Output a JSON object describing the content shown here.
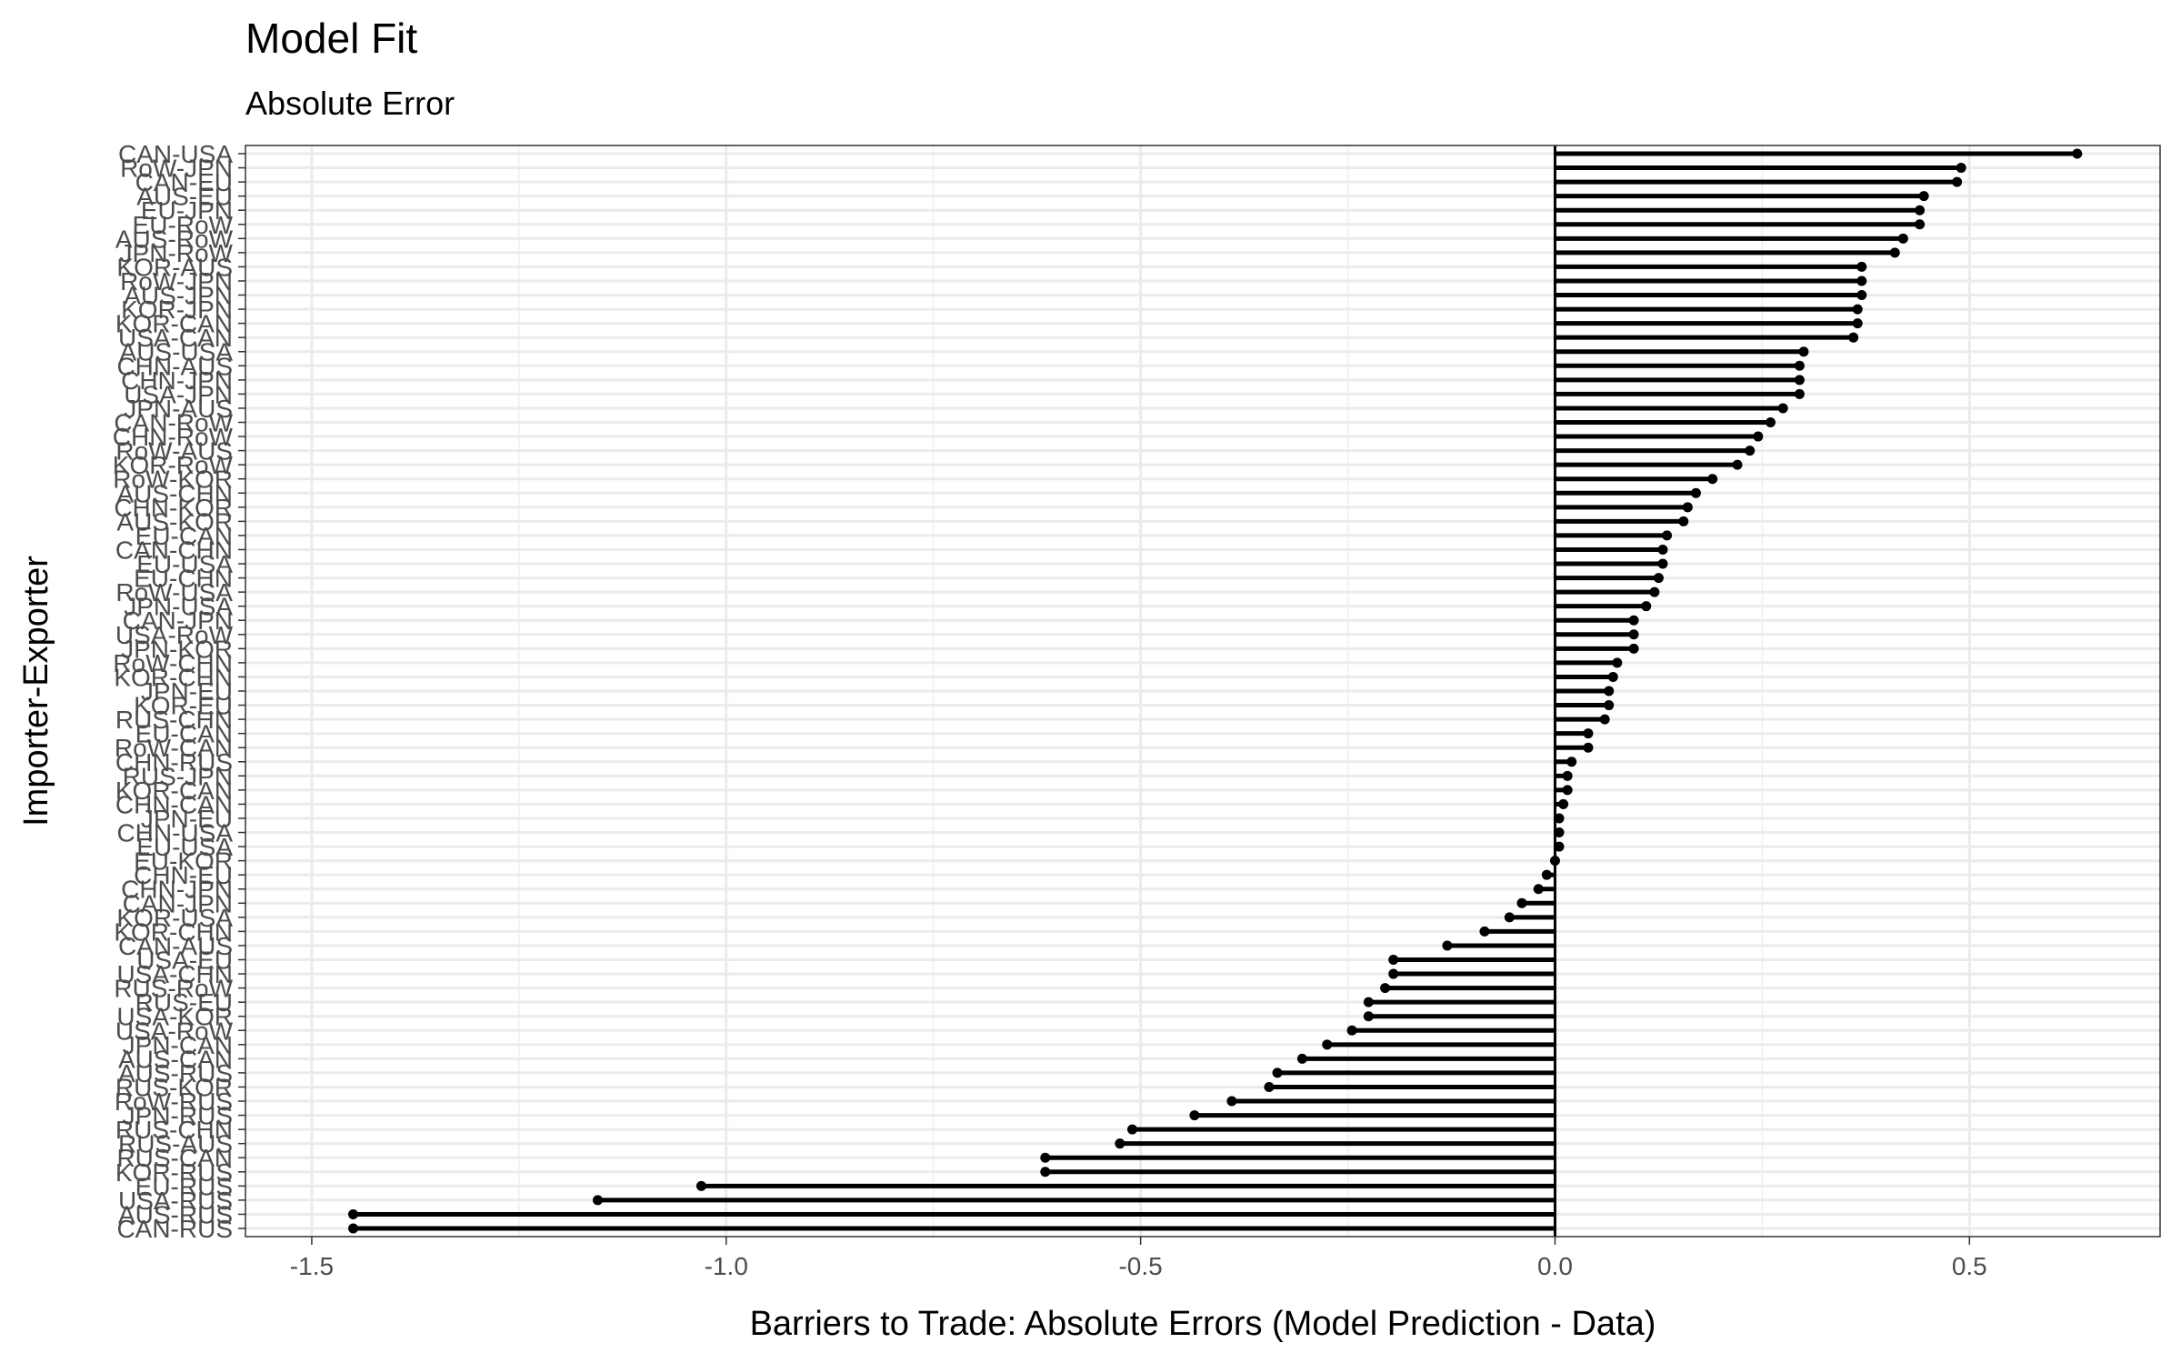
{
  "chart_data": {
    "type": "lollipop",
    "title": "Model Fit",
    "subtitle": "Absolute Error",
    "xlabel": "Barriers to Trade: Absolute Errors (Model Prediction - Data)",
    "ylabel": "Importer-Exporter",
    "xlim": [
      -1.58,
      0.73
    ],
    "xticks": [
      -1.5,
      -1.0,
      -0.5,
      0.0,
      0.5
    ],
    "xtick_labels": [
      "-1.5",
      "-1.0",
      "-0.5",
      "0.0",
      "0.5"
    ],
    "grid": true,
    "theme": "bw",
    "categories": [
      "CAN-USA",
      "RoW-JPN",
      "CAN-EU",
      "AUS-EU",
      "EU-JPN",
      "EU-RoW",
      "AUS-RoW",
      "JPN-RoW",
      "KOR-AUS",
      "RoW-JPN",
      "AUS-JPN",
      "KOR-JPN",
      "KOR-CAN",
      "USA-CAN",
      "AUS-USA",
      "CHN-AUS",
      "CHN-JPN",
      "USA-JPN",
      "JPN-AUS",
      "CAN-RoW",
      "CHN-RoW",
      "RoW-AUS",
      "KOR-RoW",
      "RoW-KOR",
      "AUS-CHN",
      "CHN-KOR",
      "AUS-KOR",
      "EU-CAN",
      "CAN-CHN",
      "EU-USA",
      "EU-CHN",
      "RoW-USA",
      "JPN-USA",
      "CAN-JPN",
      "USA-RoW",
      "JPN-KOR",
      "RoW-CHN",
      "KOR-CHN",
      "JPN-EU",
      "KOR-EU",
      "RUS-CHN",
      "EU-CAN",
      "RoW-CAN",
      "CHN-RUS",
      "RUS-JPN",
      "KOR-CAN",
      "CHN-CAN",
      "JPN-EU",
      "CHN-USA",
      "EU-USA",
      "EU-KOR",
      "CHN-EU",
      "CHN-JPN",
      "CAN-JPN",
      "KOR-USA",
      "KOR-CHN",
      "CAN-AUS",
      "USA-EU",
      "USA-CHN",
      "RUS-RoW",
      "RUS-EU",
      "USA-KOR",
      "USA-RoW",
      "JPN-CAN",
      "AUS-CAN",
      "AUS-RUS",
      "RUS-KOR",
      "RoW-RUS",
      "JPN-RUS",
      "RUS-CHN",
      "RUS-AUS",
      "RUS-CAN",
      "KOR-RUS",
      "EU-RUS",
      "USA-RUS",
      "AUS-RUS",
      "CAN-RUS"
    ],
    "series": [
      {
        "values": [
          0.63,
          0.49,
          0.485,
          0.445,
          0.44,
          0.44,
          0.42,
          0.41,
          0.37,
          0.37,
          0.37,
          0.365,
          0.365,
          0.36,
          0.3,
          0.295,
          0.295,
          0.295,
          0.275,
          0.26,
          0.245,
          0.235,
          0.22,
          0.19,
          0.17,
          0.16,
          0.155,
          0.135,
          0.13,
          0.13,
          0.125,
          0.12,
          0.11,
          0.095,
          0.095,
          0.095,
          0.075,
          0.07,
          0.065,
          0.065,
          0.06,
          0.04,
          0.04,
          0.02,
          0.015,
          0.015,
          0.01,
          0.005,
          0.005,
          0.005,
          0.0,
          -0.01,
          -0.02,
          -0.04,
          -0.055,
          -0.085,
          -0.13,
          -0.195,
          -0.195,
          -0.205,
          -0.225,
          -0.225,
          -0.245,
          -0.275,
          -0.305,
          -0.335,
          -0.345,
          -0.39,
          -0.435,
          -0.51,
          -0.525,
          -0.615,
          -0.615,
          -1.03,
          -1.155,
          -1.45,
          -1.45
        ]
      }
    ]
  },
  "colors": {
    "panel_border": "#333333",
    "major_grid": "#ebebeb",
    "minor_grid": "#f2f2f2",
    "segment": "#000000",
    "zero_line": "#000000",
    "tick_text": "#4d4d4d"
  }
}
